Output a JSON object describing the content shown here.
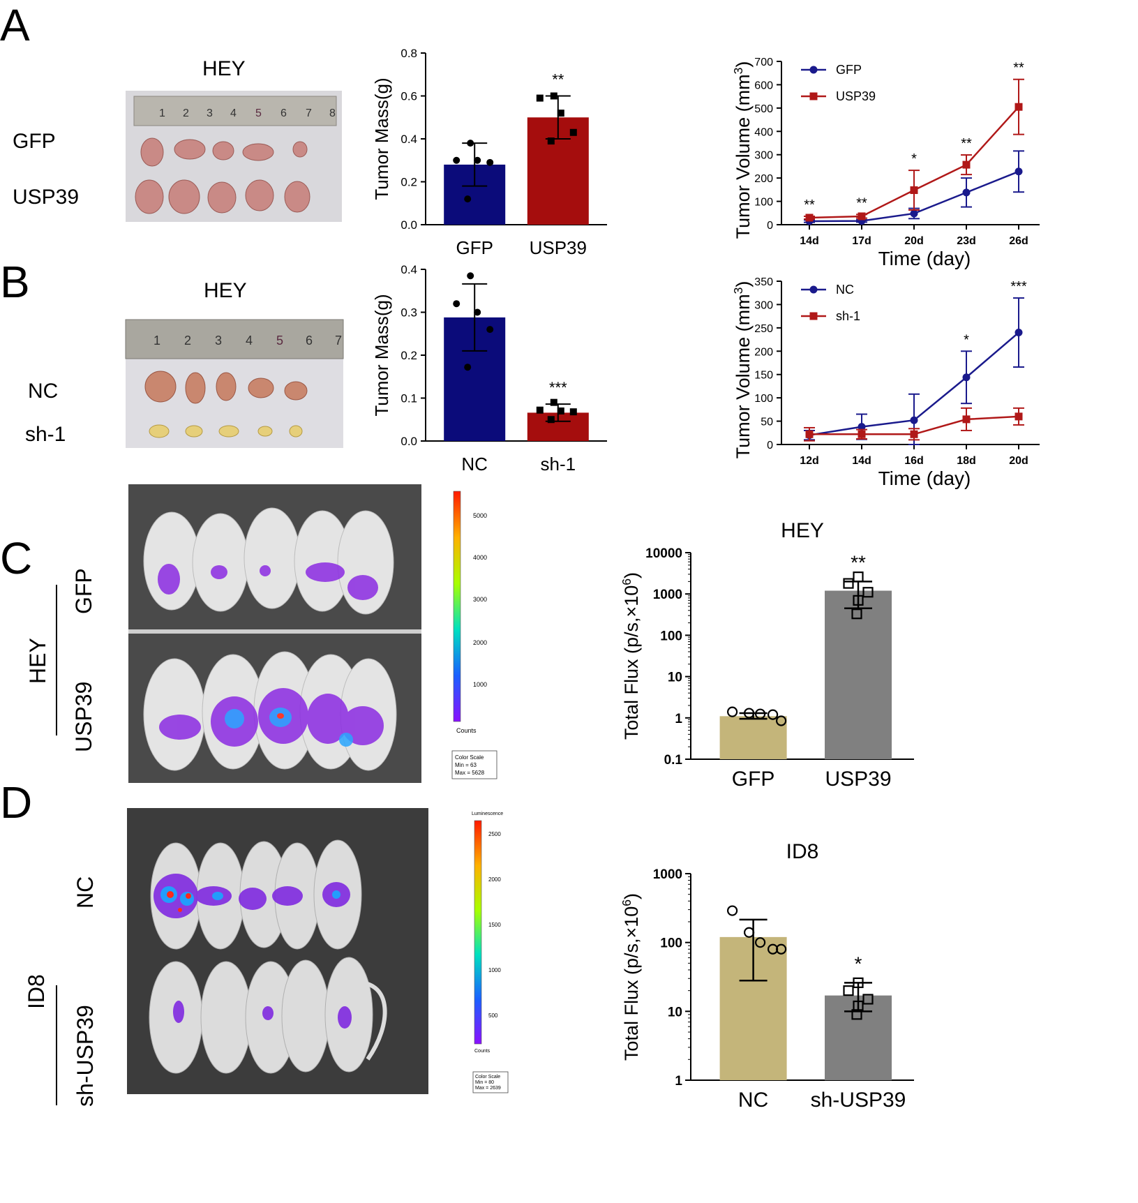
{
  "panels": {
    "A": {
      "letter": "A",
      "photo": {
        "title": "HEY",
        "row1": "GFP",
        "row2": "USP39",
        "ruler_marks": [
          "1",
          "2",
          "3",
          "4",
          "5",
          "6",
          "7",
          "8"
        ]
      },
      "chart_data": {
        "type": "bar",
        "title": "",
        "ylabel": "Tumor Mass(g)",
        "categories": [
          "GFP",
          "USP39"
        ],
        "values": [
          0.28,
          0.5
        ],
        "errors": [
          0.1,
          0.1
        ],
        "points": [
          [
            0.38,
            0.3,
            0.3,
            0.29,
            0.12
          ],
          [
            0.6,
            0.59,
            0.52,
            0.43,
            0.39
          ]
        ],
        "ylim": [
          0,
          0.8
        ],
        "yticks": [
          "0.0",
          "0.2",
          "0.4",
          "0.6",
          "0.8"
        ],
        "significance": [
          "",
          "**"
        ],
        "colors": [
          "#0b0b7a",
          "#a50d0d"
        ]
      },
      "line_data": {
        "type": "line",
        "ylabel": "Tumor Volume (mm",
        "ylabel_sup": "3",
        "ylabel_end": ")",
        "xlabel": "Time  (day)",
        "categories": [
          "14d",
          "17d",
          "20d",
          "23d",
          "26d"
        ],
        "ylim": [
          0,
          700
        ],
        "yticks": [
          "0",
          "100",
          "200",
          "300",
          "400",
          "500",
          "600",
          "700"
        ],
        "series": [
          {
            "name": "GFP",
            "color": "#1a1a8c",
            "values": [
              15,
              16,
              48,
              138,
              228
            ],
            "errors": [
              5,
              5,
              22,
              62,
              88
            ]
          },
          {
            "name": "USP39",
            "color": "#b01818",
            "values": [
              30,
              36,
              148,
              257,
              505
            ],
            "errors": [
              6,
              8,
              85,
              42,
              118
            ]
          }
        ],
        "significance": [
          "**",
          "**",
          "*",
          "**",
          "**"
        ]
      }
    },
    "B": {
      "letter": "B",
      "photo": {
        "title": "HEY",
        "row1": "NC",
        "row2": "sh-1",
        "ruler_marks": [
          "1",
          "2",
          "3",
          "4",
          "5",
          "6",
          "7"
        ]
      },
      "chart_data": {
        "type": "bar",
        "title": "",
        "ylabel": "Tumor Mass(g)",
        "categories": [
          "NC",
          "sh-1"
        ],
        "values": [
          0.288,
          0.066
        ],
        "errors": [
          0.078,
          0.02
        ],
        "points": [
          [
            0.385,
            0.32,
            0.3,
            0.26,
            0.172
          ],
          [
            0.09,
            0.072,
            0.07,
            0.068,
            0.05
          ]
        ],
        "ylim": [
          0,
          0.4
        ],
        "yticks": [
          "0.0",
          "0.1",
          "0.2",
          "0.3",
          "0.4"
        ],
        "significance": [
          "",
          "***"
        ],
        "colors": [
          "#0b0b7a",
          "#a50d0d"
        ]
      },
      "line_data": {
        "type": "line",
        "ylabel": "Tumor Volume (mm",
        "ylabel_sup": "3",
        "ylabel_end": ")",
        "xlabel": "Time (day)",
        "categories": [
          "12d",
          "14d",
          "16d",
          "18d",
          "20d"
        ],
        "ylim": [
          0,
          350
        ],
        "yticks": [
          "0",
          "50",
          "100",
          "150",
          "200",
          "250",
          "300",
          "350"
        ],
        "series": [
          {
            "name": "NC",
            "color": "#1a1a8c",
            "values": [
              20,
              38,
              52,
              144,
              240
            ],
            "errors": [
              10,
              27,
              56,
              56,
              74
            ]
          },
          {
            "name": "sh-1",
            "color": "#b01818",
            "values": [
              22,
              22,
              22,
              54,
              60
            ],
            "errors": [
              14,
              10,
              12,
              24,
              18
            ]
          }
        ],
        "significance": [
          "",
          "",
          "",
          "*",
          "***"
        ]
      }
    },
    "C": {
      "letter": "C",
      "side_label": "HEY",
      "group1": "GFP",
      "group2": "USP39",
      "scale": {
        "ticks": [
          "5000",
          "4000",
          "3000",
          "2000",
          "1000"
        ],
        "unit": "Counts",
        "box": [
          "Color Scale",
          "Min = 63",
          "Max = 5628"
        ]
      },
      "chart_data": {
        "type": "bar",
        "title": "HEY",
        "ylabel": "Total Flux (p/s,×10",
        "ylabel_sup": "6",
        "ylabel_end": ")",
        "categories": [
          "GFP",
          "USP39"
        ],
        "values": [
          1.1,
          1200
        ],
        "err_low": [
          0.95,
          450
        ],
        "err_high": [
          1.3,
          2000
        ],
        "points": [
          [
            1.4,
            1.3,
            1.25,
            1.2,
            0.85
          ],
          [
            2600,
            1800,
            1100,
            700,
            330
          ]
        ],
        "log_range": [
          0.1,
          10000
        ],
        "yticks": [
          "0.1",
          "1",
          "10",
          "100",
          "1000",
          "10000"
        ],
        "significance": [
          "",
          "**"
        ],
        "colors": [
          "#c4b57a",
          "#808080"
        ]
      }
    },
    "D": {
      "letter": "D",
      "side_label": "ID8",
      "group1": "NC",
      "group2": "sh-USP39",
      "scale": {
        "title": "Luminescence",
        "ticks": [
          "2500",
          "2000",
          "1500",
          "1000",
          "500"
        ],
        "unit": "Counts",
        "box": [
          "Color Scale",
          "Min = 80",
          "Max = 2639"
        ]
      },
      "chart_data": {
        "type": "bar",
        "title": "ID8",
        "ylabel": "Total Flux (p/s,×10",
        "ylabel_sup": "6",
        "ylabel_end": ")",
        "categories": [
          "NC",
          "sh-USP39"
        ],
        "values": [
          120,
          17
        ],
        "err_low": [
          28,
          10
        ],
        "err_high": [
          215,
          26
        ],
        "points": [
          [
            290,
            140,
            100,
            80,
            80
          ],
          [
            26,
            20,
            15,
            12,
            9
          ]
        ],
        "log_range": [
          1,
          1000
        ],
        "yticks": [
          "1",
          "10",
          "100",
          "1000"
        ],
        "significance": [
          "",
          "*"
        ],
        "colors": [
          "#c4b57a",
          "#808080"
        ]
      }
    }
  }
}
